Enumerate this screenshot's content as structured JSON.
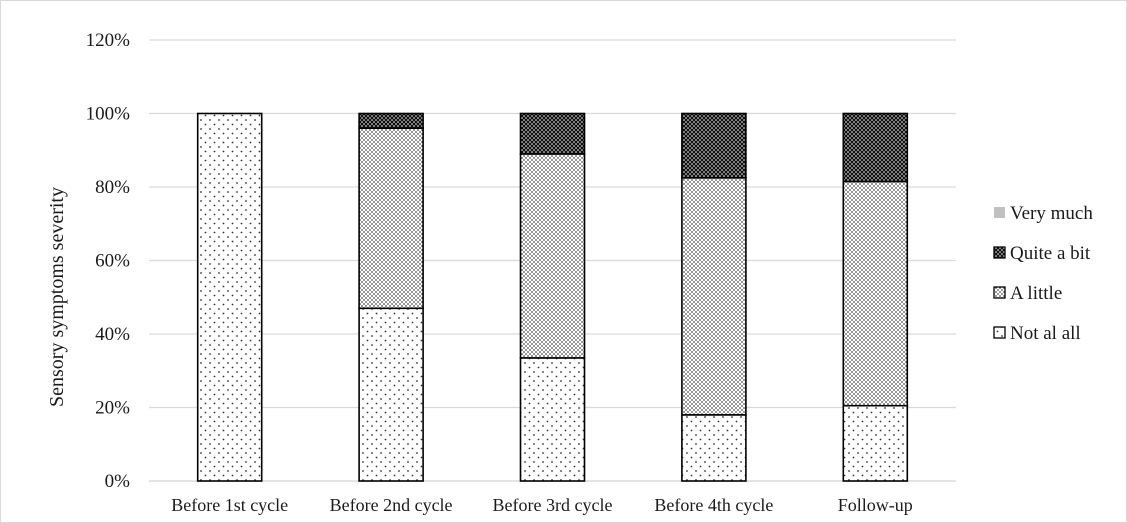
{
  "chart_data": {
    "type": "bar",
    "stacked": true,
    "percent": true,
    "title": "",
    "xlabel": "",
    "ylabel": "Sensory symptoms severity",
    "ylim": [
      0,
      120
    ],
    "yticks": [
      0,
      20,
      40,
      60,
      80,
      100,
      120
    ],
    "ytick_labels": [
      "0%",
      "20%",
      "40%",
      "60%",
      "80%",
      "100%",
      "120%"
    ],
    "grid": true,
    "legend_position": "right",
    "categories": [
      "Before 1st cycle",
      "Before 2nd cycle",
      "Before 3rd cycle",
      "Before 4th cycle",
      "Follow-up"
    ],
    "series": [
      {
        "name": "Not al all",
        "pattern": "sparse-dots",
        "values": [
          100,
          47,
          33.5,
          18,
          20.5
        ]
      },
      {
        "name": "A little",
        "pattern": "dense-dots",
        "values": [
          0,
          49,
          55.5,
          64.5,
          61
        ]
      },
      {
        "name": "Quite a bit",
        "pattern": "dark-dots",
        "values": [
          0,
          4,
          11,
          17.5,
          18.5
        ]
      },
      {
        "name": "Very much",
        "pattern": "solid-gray",
        "values": [
          0,
          0,
          0,
          0,
          0
        ]
      }
    ],
    "legend_order": [
      "Very much",
      "Quite a bit",
      "A little",
      "Not al all"
    ],
    "colors": {
      "grid": "#d9d9d9",
      "bar_outline": "#000000",
      "very_much": "#c0c0c0",
      "dark": "#111111"
    }
  }
}
